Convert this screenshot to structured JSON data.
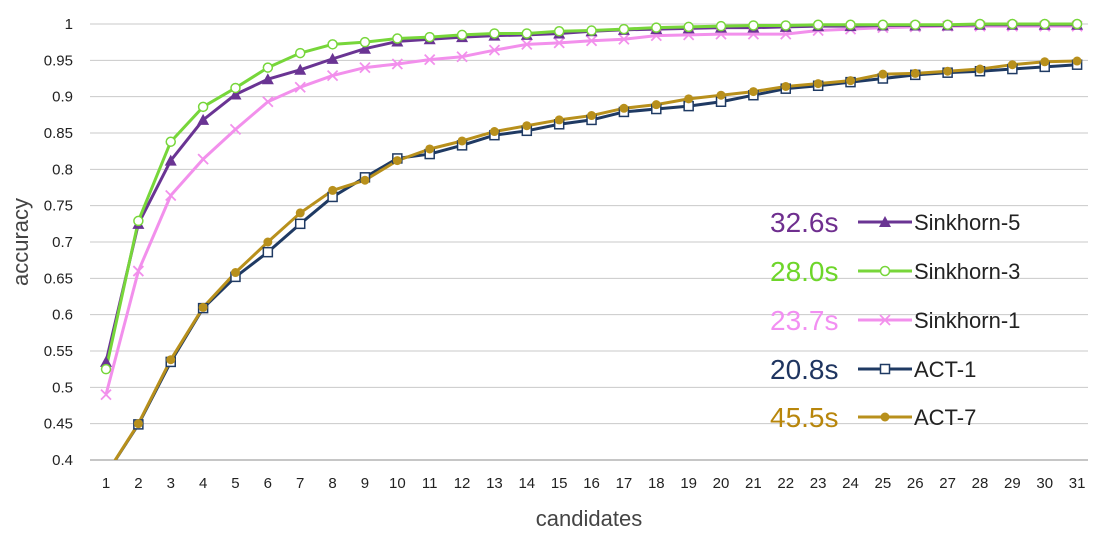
{
  "chart_data": {
    "type": "line",
    "xlabel": "candidates",
    "ylabel": "accuracy",
    "x": [
      1,
      2,
      3,
      4,
      5,
      6,
      7,
      8,
      9,
      10,
      11,
      12,
      13,
      14,
      15,
      16,
      17,
      18,
      19,
      20,
      21,
      22,
      23,
      24,
      25,
      26,
      27,
      28,
      29,
      30,
      31
    ],
    "xlim": [
      1,
      31
    ],
    "ylim": [
      0.4,
      1
    ],
    "yticks": [
      "0.4",
      "0.45",
      "0.5",
      "0.55",
      "0.6",
      "0.65",
      "0.7",
      "0.75",
      "0.8",
      "0.85",
      "0.9",
      "0.95",
      "1"
    ],
    "grid": true,
    "legend_position": "right-center",
    "series": [
      {
        "name": "Sinkhorn-5",
        "time": "32.6s",
        "time_color": "#6f2f8f",
        "color": "#6a3493",
        "marker": "triangle",
        "values": [
          0.535,
          0.725,
          0.812,
          0.868,
          0.903,
          0.924,
          0.937,
          0.952,
          0.966,
          0.976,
          0.979,
          0.982,
          0.984,
          0.985,
          0.987,
          0.99,
          0.992,
          0.993,
          0.994,
          0.995,
          0.995,
          0.996,
          0.997,
          0.997,
          0.998,
          0.998,
          0.998,
          0.999,
          0.999,
          0.999,
          0.999
        ]
      },
      {
        "name": "Sinkhorn-3",
        "time": "28.0s",
        "time_color": "#6ed62a",
        "color": "#77d63a",
        "marker": "circle-open",
        "values": [
          0.525,
          0.729,
          0.838,
          0.886,
          0.912,
          0.94,
          0.96,
          0.972,
          0.975,
          0.98,
          0.982,
          0.985,
          0.987,
          0.987,
          0.99,
          0.991,
          0.993,
          0.995,
          0.996,
          0.997,
          0.998,
          0.998,
          0.999,
          0.999,
          0.999,
          0.999,
          0.999,
          1.0,
          1.0,
          1.0,
          1.0
        ]
      },
      {
        "name": "Sinkhorn-1",
        "time": "23.7s",
        "time_color": "#f28ff2",
        "color": "#f290ec",
        "marker": "x",
        "values": [
          0.49,
          0.66,
          0.764,
          0.814,
          0.855,
          0.893,
          0.913,
          0.929,
          0.94,
          0.945,
          0.951,
          0.955,
          0.964,
          0.972,
          0.974,
          0.977,
          0.979,
          0.984,
          0.985,
          0.986,
          0.986,
          0.986,
          0.991,
          0.993,
          0.995,
          0.996,
          0.997,
          0.997,
          0.997,
          0.997,
          0.997
        ]
      },
      {
        "name": "ACT-1",
        "time": "20.8s",
        "time_color": "#1f3560",
        "color": "#1f3a63",
        "marker": "square-open",
        "values": [
          0.38,
          0.449,
          0.535,
          0.609,
          0.652,
          0.686,
          0.725,
          0.762,
          0.789,
          0.815,
          0.821,
          0.833,
          0.847,
          0.853,
          0.862,
          0.868,
          0.879,
          0.883,
          0.887,
          0.893,
          0.902,
          0.911,
          0.915,
          0.92,
          0.925,
          0.93,
          0.933,
          0.935,
          0.938,
          0.941,
          0.944
        ]
      },
      {
        "name": "ACT-7",
        "time": "45.5s",
        "time_color": "#b8860b",
        "color": "#b8901c",
        "marker": "circle",
        "values": [
          0.38,
          0.45,
          0.538,
          0.61,
          0.658,
          0.7,
          0.74,
          0.771,
          0.785,
          0.812,
          0.828,
          0.839,
          0.852,
          0.86,
          0.868,
          0.874,
          0.884,
          0.889,
          0.897,
          0.902,
          0.907,
          0.914,
          0.918,
          0.922,
          0.931,
          0.932,
          0.935,
          0.938,
          0.944,
          0.948,
          0.949
        ]
      }
    ]
  }
}
